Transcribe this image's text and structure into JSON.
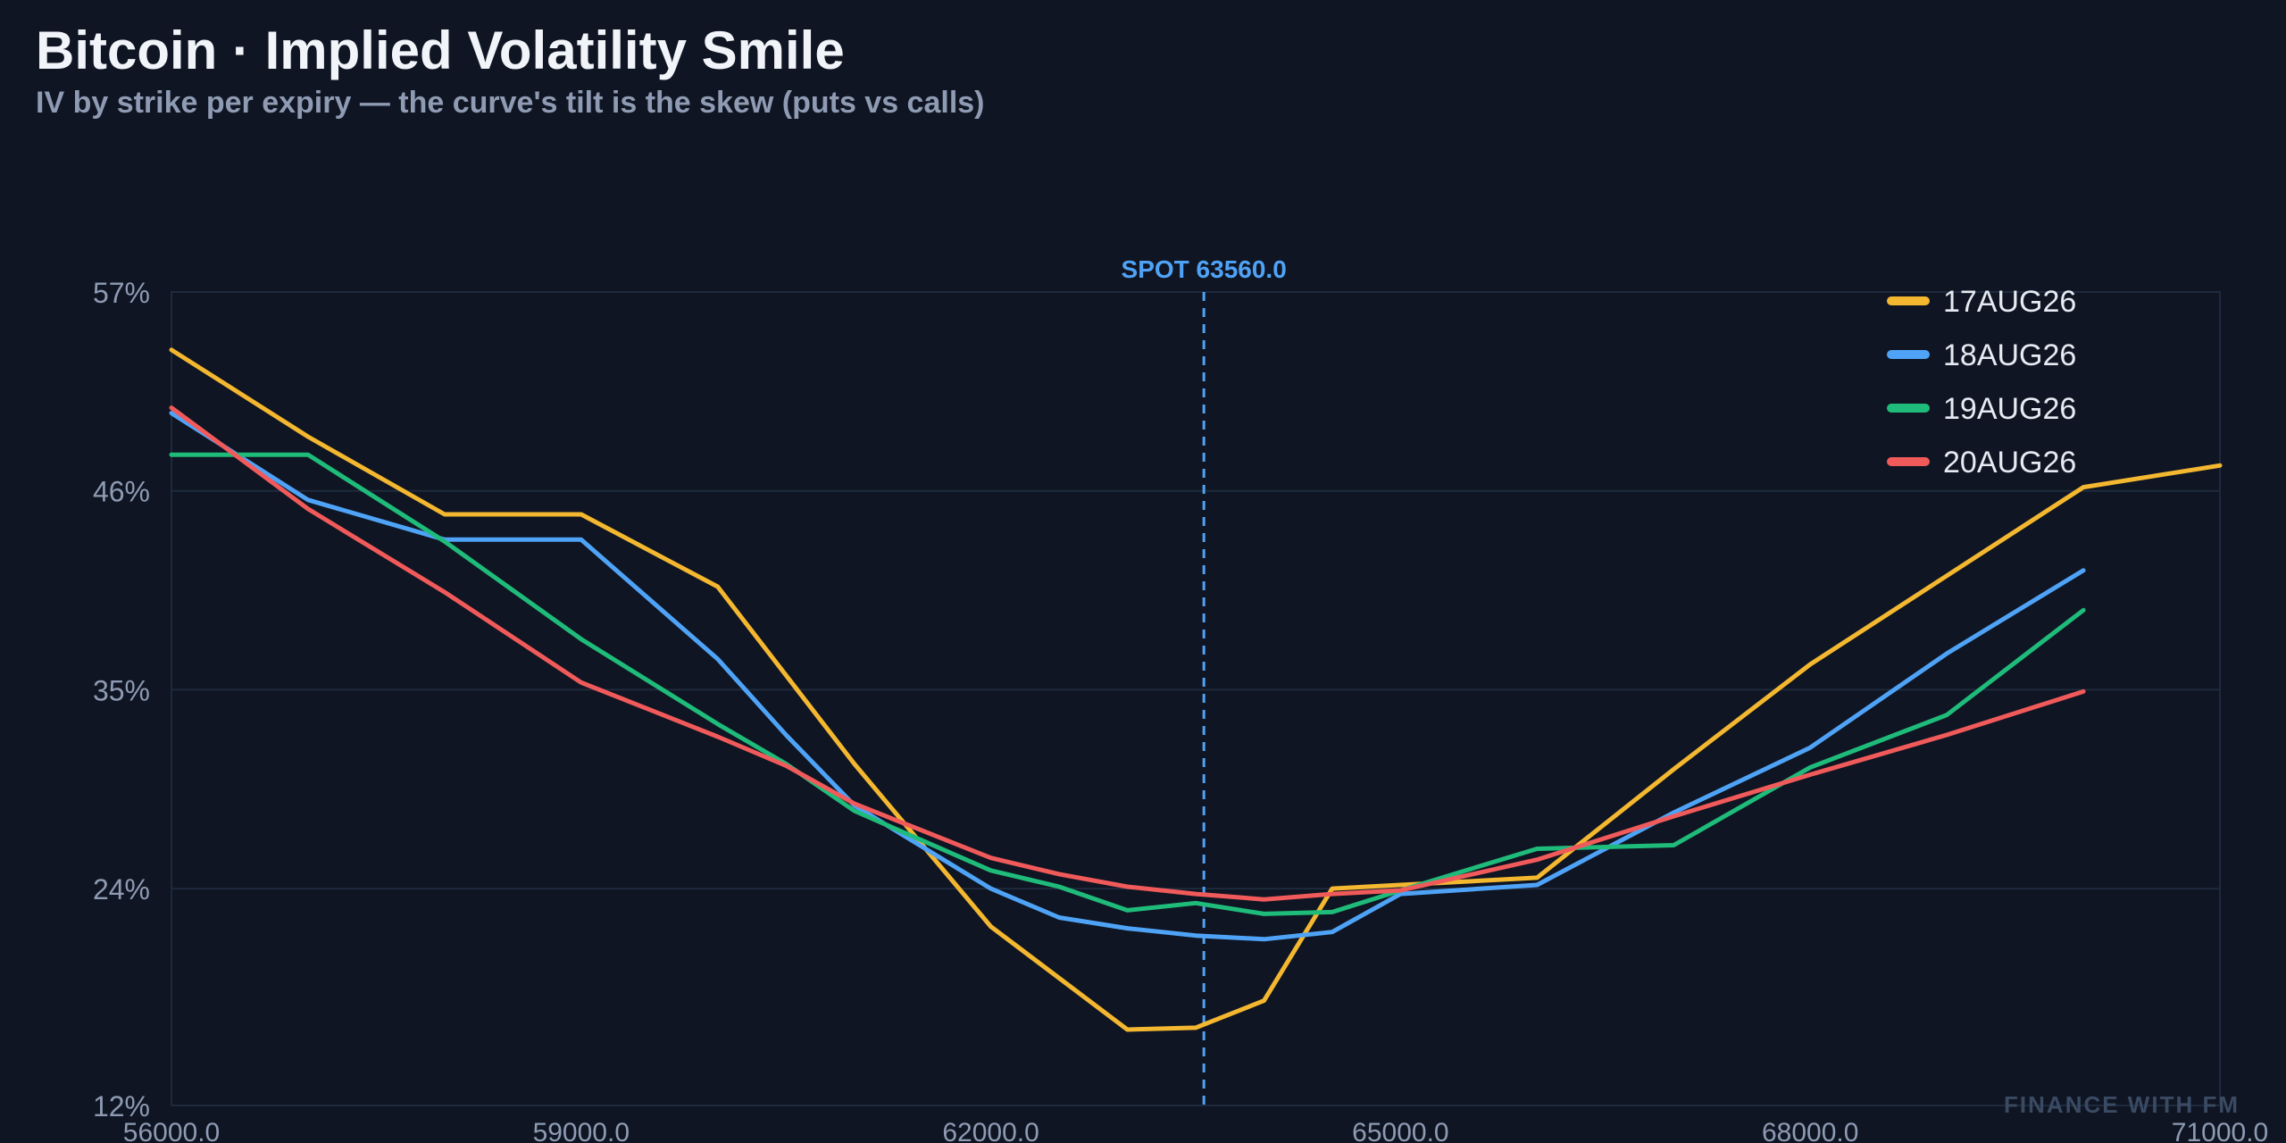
{
  "header": {
    "title": "Bitcoin · Implied Volatility Smile",
    "subtitle": "IV by strike per expiry — the curve's tilt is the skew (puts vs calls)"
  },
  "watermark": "FINANCE WITH FM",
  "colors": {
    "background": "#0f1522",
    "grid": "#1e2a3d",
    "axis_text": "#8e9bb3",
    "spot": "#4fa3f7"
  },
  "chart_data": {
    "type": "line",
    "ylim": [
      12,
      57
    ],
    "xlim": [
      56000,
      71000
    ],
    "y_ticks": [
      57,
      46,
      35,
      24,
      12
    ],
    "y_tick_labels": [
      "57%",
      "46%",
      "35%",
      "24%",
      "12%"
    ],
    "x_ticks": [
      56000,
      59000,
      62000,
      65000,
      68000,
      71000
    ],
    "x_tick_labels": [
      "56000.0",
      "59000.0",
      "62000.0",
      "65000.0",
      "68000.0",
      "71000.0"
    ],
    "grid": true,
    "legend_position": "top-right",
    "spot": {
      "value": 63560,
      "label": "SPOT 63560.0"
    },
    "series": [
      {
        "name": "17AUG26",
        "color": "#f4b730",
        "points": [
          [
            56000,
            53.8
          ],
          [
            57000,
            49
          ],
          [
            58000,
            44.7
          ],
          [
            59000,
            44.7
          ],
          [
            60000,
            40.7
          ],
          [
            61000,
            30.9
          ],
          [
            62000,
            21.9
          ],
          [
            63000,
            16.2
          ],
          [
            63500,
            16.3
          ],
          [
            64000,
            17.8
          ],
          [
            64500,
            24.0
          ],
          [
            65000,
            24.2
          ],
          [
            66000,
            24.6
          ],
          [
            67000,
            30.6
          ],
          [
            68000,
            36.4
          ],
          [
            69000,
            41.3
          ],
          [
            70000,
            46.2
          ],
          [
            71000,
            47.4
          ]
        ]
      },
      {
        "name": "18AUG26",
        "color": "#4fa3f7",
        "points": [
          [
            56000,
            50.3
          ],
          [
            57000,
            45.5
          ],
          [
            58000,
            43.3
          ],
          [
            59000,
            43.3
          ],
          [
            60000,
            36.7
          ],
          [
            60500,
            32.5
          ],
          [
            61000,
            28.6
          ],
          [
            62000,
            24.0
          ],
          [
            62500,
            22.4
          ],
          [
            63000,
            21.8
          ],
          [
            63500,
            21.4
          ],
          [
            64000,
            21.2
          ],
          [
            64500,
            21.6
          ],
          [
            65000,
            23.7
          ],
          [
            66000,
            24.2
          ],
          [
            67000,
            28.2
          ],
          [
            68000,
            31.8
          ],
          [
            69000,
            37.0
          ],
          [
            70000,
            41.6
          ]
        ]
      },
      {
        "name": "19AUG26",
        "color": "#1fbb7a",
        "points": [
          [
            56000,
            48.0
          ],
          [
            57000,
            48.0
          ],
          [
            58000,
            43.2
          ],
          [
            59000,
            37.8
          ],
          [
            60000,
            33.1
          ],
          [
            60500,
            30.9
          ],
          [
            61000,
            28.3
          ],
          [
            62000,
            25.0
          ],
          [
            62500,
            24.1
          ],
          [
            63000,
            22.8
          ],
          [
            63500,
            23.2
          ],
          [
            64000,
            22.6
          ],
          [
            64500,
            22.7
          ],
          [
            65000,
            23.9
          ],
          [
            66000,
            26.2
          ],
          [
            67000,
            26.4
          ],
          [
            68000,
            30.7
          ],
          [
            69000,
            33.6
          ],
          [
            70000,
            39.4
          ]
        ]
      },
      {
        "name": "20AUG26",
        "color": "#f15a5a",
        "points": [
          [
            56000,
            50.6
          ],
          [
            57000,
            45.0
          ],
          [
            58000,
            40.4
          ],
          [
            59000,
            35.4
          ],
          [
            60000,
            32.4
          ],
          [
            60500,
            30.8
          ],
          [
            61000,
            28.7
          ],
          [
            62000,
            25.7
          ],
          [
            62500,
            24.8
          ],
          [
            63000,
            24.1
          ],
          [
            63500,
            23.7
          ],
          [
            64000,
            23.4
          ],
          [
            64500,
            23.7
          ],
          [
            65000,
            23.9
          ],
          [
            66000,
            25.6
          ],
          [
            67000,
            28.0
          ],
          [
            68000,
            30.3
          ],
          [
            69000,
            32.5
          ],
          [
            70000,
            34.9
          ]
        ]
      }
    ]
  }
}
